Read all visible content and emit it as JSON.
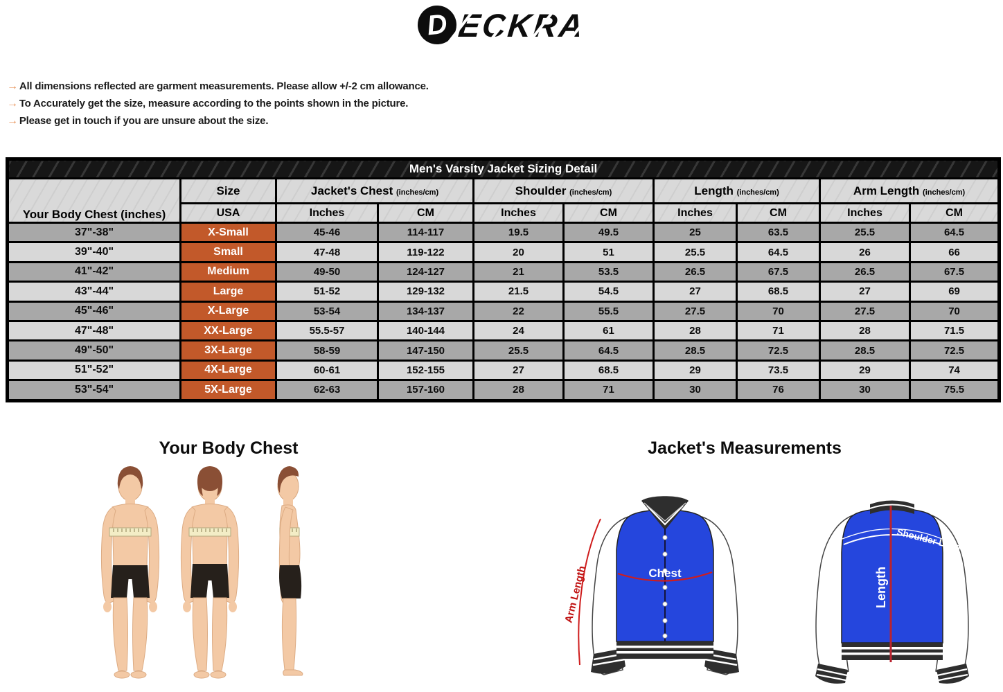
{
  "logo": {
    "circle_letter": "D",
    "wordmark": "ECKRA",
    "brand": "DECKRA"
  },
  "notes": {
    "bullet": "→",
    "items": [
      "All dimensions reflected are garment measurements. Please allow +/-2 cm allowance.",
      "To Accurately get the size, measure according to the points shown in the picture.",
      "Please get in touch if you are unsure about the size."
    ]
  },
  "table": {
    "title": "Men's Varsity Jacket Sizing Detail",
    "row_header_label": "Your Body Chest (inches)",
    "size_header": {
      "top": "Size",
      "bottom": "USA"
    },
    "groups": [
      {
        "label": "Jacket's Chest",
        "unit": "(inches/cm)"
      },
      {
        "label": "Shoulder",
        "unit": "(inches/cm)"
      },
      {
        "label": "Length",
        "unit": "(inches/cm)"
      },
      {
        "label": "Arm Length",
        "unit": "(inches/cm)"
      }
    ],
    "subheaders": [
      "Inches",
      "CM"
    ],
    "rows": [
      {
        "body_chest": "37\"-38\"",
        "size": "X-Small",
        "values": [
          "45-46",
          "114-117",
          "19.5",
          "49.5",
          "25",
          "63.5",
          "25.5",
          "64.5"
        ]
      },
      {
        "body_chest": "39\"-40\"",
        "size": "Small",
        "values": [
          "47-48",
          "119-122",
          "20",
          "51",
          "25.5",
          "64.5",
          "26",
          "66"
        ]
      },
      {
        "body_chest": "41\"-42\"",
        "size": "Medium",
        "values": [
          "49-50",
          "124-127",
          "21",
          "53.5",
          "26.5",
          "67.5",
          "26.5",
          "67.5"
        ]
      },
      {
        "body_chest": "43\"-44\"",
        "size": "Large",
        "values": [
          "51-52",
          "129-132",
          "21.5",
          "54.5",
          "27",
          "68.5",
          "27",
          "69"
        ]
      },
      {
        "body_chest": "45\"-46\"",
        "size": "X-Large",
        "values": [
          "53-54",
          "134-137",
          "22",
          "55.5",
          "27.5",
          "70",
          "27.5",
          "70"
        ]
      },
      {
        "body_chest": "47\"-48\"",
        "size": "XX-Large",
        "values": [
          "55.5-57",
          "140-144",
          "24",
          "61",
          "28",
          "71",
          "28",
          "71.5"
        ]
      },
      {
        "body_chest": "49\"-50\"",
        "size": "3X-Large",
        "values": [
          "58-59",
          "147-150",
          "25.5",
          "64.5",
          "28.5",
          "72.5",
          "28.5",
          "72.5"
        ]
      },
      {
        "body_chest": "51\"-52\"",
        "size": "4X-Large",
        "values": [
          "60-61",
          "152-155",
          "27",
          "68.5",
          "29",
          "73.5",
          "29",
          "74"
        ]
      },
      {
        "body_chest": "53\"-54\"",
        "size": "5X-Large",
        "values": [
          "62-63",
          "157-160",
          "28",
          "71",
          "30",
          "76",
          "30",
          "75.5"
        ]
      }
    ]
  },
  "sections": {
    "left_title": "Your Body Chest",
    "right_title": "Jacket's Measurements"
  },
  "jacket_labels": {
    "chest": "Chest",
    "arm_length": "Arm Length",
    "length": "Length",
    "shoulder_length": "Shoulder Length"
  },
  "colors": {
    "size_accent_orange": "#c2592a",
    "bullet_arrow_orange": "#e8945a",
    "row_dark_gray": "#a8a8a8",
    "row_light_gray": "#d8d8d8",
    "header_gray": "#d9d9d9",
    "table_title_bg": "#161616",
    "jacket_blue": "#2546dd",
    "measure_red": "#cf1d1d"
  }
}
